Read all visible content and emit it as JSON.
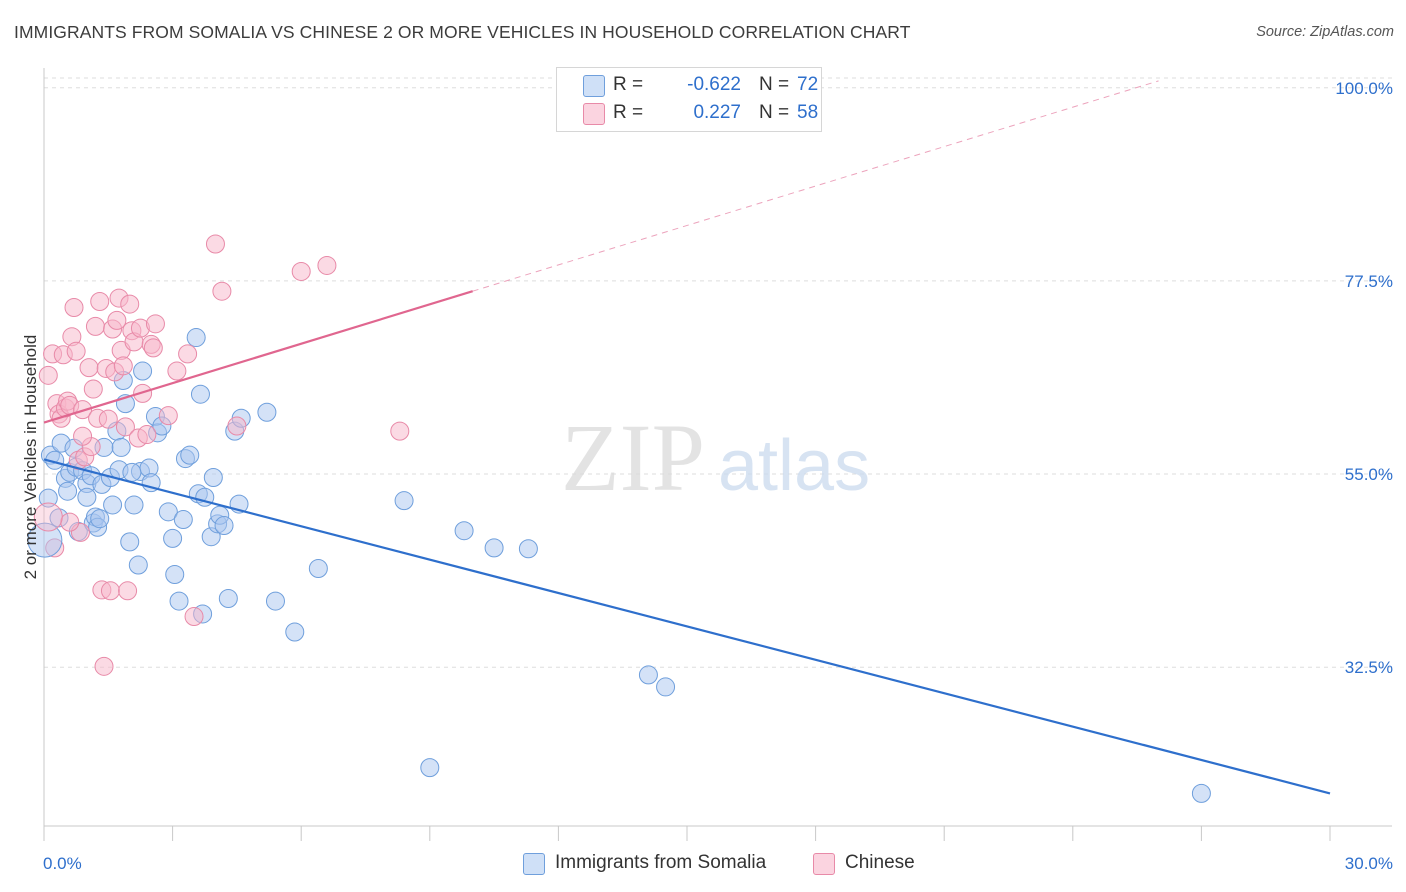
{
  "header": {
    "title": "IMMIGRANTS FROM SOMALIA VS CHINESE 2 OR MORE VEHICLES IN HOUSEHOLD CORRELATION CHART",
    "source": "Source: ZipAtlas.com"
  },
  "watermark": {
    "zip": "ZIP",
    "atlas": "atlas"
  },
  "legend": {
    "rows": [
      {
        "r_label": "R =",
        "r_value": "-0.622",
        "n_label": "N =",
        "n_value": "72",
        "color": "#a9c6f0"
      },
      {
        "r_label": "R =",
        "r_value": "0.227",
        "n_label": "N =",
        "n_value": "58",
        "color": "#f7b6ca"
      }
    ]
  },
  "colors": {
    "somalia_fill": "#a9c6f0",
    "somalia_stroke": "#6f9fdc",
    "somalia_line": "#2e6fcc",
    "chinese_fill": "#f7b6ca",
    "chinese_stroke": "#e88aa8",
    "chinese_line": "#e0668f",
    "axis_label": "#2e6fcc",
    "grid": "#dedede"
  },
  "chart_data": {
    "type": "scatter",
    "title": "IMMIGRANTS FROM SOMALIA VS CHINESE 2 OR MORE VEHICLES IN HOUSEHOLD CORRELATION CHART",
    "xlabel": "",
    "ylabel": "2 or more Vehicles in Household",
    "xlim": [
      0,
      30
    ],
    "ylim": [
      14,
      103
    ],
    "x_tick_labels": [
      "0.0%",
      "30.0%"
    ],
    "y_ticks": [
      32.5,
      55.0,
      77.5,
      100.0
    ],
    "y_tick_labels": [
      "32.5%",
      "55.0%",
      "77.5%",
      "100.0%"
    ],
    "grid": true,
    "legend_position": "bottom-center",
    "series": [
      {
        "name": "Immigrants from Somalia",
        "r": -0.622,
        "n": 72,
        "trend": {
          "x": [
            0,
            30
          ],
          "y": [
            56.7,
            17.8
          ],
          "style": "solid"
        },
        "points": [
          [
            0.1,
            52.2
          ],
          [
            0.15,
            57.2
          ],
          [
            0.25,
            56.6
          ],
          [
            0.35,
            49.9
          ],
          [
            0.4,
            58.6
          ],
          [
            0.5,
            54.5
          ],
          [
            0.6,
            55.2
          ],
          [
            0.7,
            58.0
          ],
          [
            0.75,
            55.8
          ],
          [
            0.8,
            48.3
          ],
          [
            0.9,
            55.4
          ],
          [
            1.0,
            53.9
          ],
          [
            1.0,
            52.3
          ],
          [
            1.1,
            54.8
          ],
          [
            1.15,
            49.3
          ],
          [
            1.2,
            50.0
          ],
          [
            1.25,
            48.8
          ],
          [
            1.35,
            53.8
          ],
          [
            1.4,
            58.1
          ],
          [
            1.55,
            54.6
          ],
          [
            1.6,
            51.4
          ],
          [
            1.7,
            60.0
          ],
          [
            1.75,
            55.5
          ],
          [
            1.8,
            58.1
          ],
          [
            1.85,
            65.9
          ],
          [
            1.9,
            63.2
          ],
          [
            2.0,
            47.1
          ],
          [
            2.1,
            51.4
          ],
          [
            2.2,
            44.4
          ],
          [
            2.25,
            55.3
          ],
          [
            2.3,
            67.0
          ],
          [
            2.45,
            55.7
          ],
          [
            2.5,
            54.0
          ],
          [
            2.6,
            61.7
          ],
          [
            2.65,
            59.8
          ],
          [
            2.75,
            60.6
          ],
          [
            2.9,
            50.6
          ],
          [
            3.0,
            47.5
          ],
          [
            3.05,
            43.3
          ],
          [
            3.15,
            40.2
          ],
          [
            3.25,
            49.7
          ],
          [
            3.3,
            56.8
          ],
          [
            3.4,
            57.2
          ],
          [
            3.55,
            70.9
          ],
          [
            3.6,
            52.7
          ],
          [
            3.65,
            64.3
          ],
          [
            3.75,
            52.3
          ],
          [
            3.9,
            47.7
          ],
          [
            3.95,
            54.6
          ],
          [
            4.05,
            49.2
          ],
          [
            4.1,
            50.2
          ],
          [
            4.2,
            49.0
          ],
          [
            4.3,
            40.5
          ],
          [
            4.45,
            60.0
          ],
          [
            4.55,
            51.5
          ],
          [
            4.6,
            61.5
          ],
          [
            5.2,
            62.2
          ],
          [
            5.4,
            40.2
          ],
          [
            5.85,
            36.6
          ],
          [
            6.4,
            44.0
          ],
          [
            8.4,
            51.9
          ],
          [
            9.8,
            48.4
          ],
          [
            10.5,
            46.4
          ],
          [
            11.3,
            46.3
          ],
          [
            14.1,
            31.6
          ],
          [
            14.5,
            30.2
          ],
          [
            9.0,
            20.8
          ],
          [
            27.0,
            17.8
          ],
          [
            3.7,
            38.7
          ],
          [
            0.55,
            53.0
          ],
          [
            1.3,
            49.8
          ],
          [
            2.05,
            55.2
          ]
        ]
      },
      {
        "name": "Chinese",
        "r": 0.227,
        "n": 58,
        "trend": {
          "x": [
            0,
            10
          ],
          "y": [
            61.0,
            76.3
          ],
          "style": "solid"
        },
        "trend_extension": {
          "x": [
            10,
            26
          ],
          "y": [
            76.3,
            100.8
          ],
          "style": "dashed"
        },
        "points": [
          [
            0.1,
            66.5
          ],
          [
            0.2,
            69.0
          ],
          [
            0.3,
            63.2
          ],
          [
            0.35,
            62.0
          ],
          [
            0.4,
            61.5
          ],
          [
            0.45,
            68.9
          ],
          [
            0.5,
            62.7
          ],
          [
            0.55,
            63.5
          ],
          [
            0.6,
            63.0
          ],
          [
            0.65,
            71.0
          ],
          [
            0.7,
            74.4
          ],
          [
            0.75,
            69.3
          ],
          [
            0.8,
            56.6
          ],
          [
            0.85,
            48.2
          ],
          [
            0.9,
            62.5
          ],
          [
            0.95,
            57.0
          ],
          [
            1.05,
            67.4
          ],
          [
            1.1,
            58.2
          ],
          [
            1.15,
            64.9
          ],
          [
            1.2,
            72.2
          ],
          [
            1.25,
            61.5
          ],
          [
            1.3,
            75.1
          ],
          [
            1.35,
            41.5
          ],
          [
            1.4,
            32.6
          ],
          [
            1.45,
            67.3
          ],
          [
            1.5,
            61.4
          ],
          [
            1.55,
            41.4
          ],
          [
            1.6,
            71.9
          ],
          [
            1.65,
            66.9
          ],
          [
            1.7,
            72.9
          ],
          [
            1.75,
            75.5
          ],
          [
            1.8,
            69.4
          ],
          [
            1.85,
            67.6
          ],
          [
            1.9,
            60.5
          ],
          [
            1.95,
            41.4
          ],
          [
            2.0,
            74.8
          ],
          [
            2.05,
            71.7
          ],
          [
            2.1,
            70.4
          ],
          [
            2.2,
            59.2
          ],
          [
            2.25,
            72.0
          ],
          [
            2.3,
            64.4
          ],
          [
            2.4,
            59.6
          ],
          [
            2.5,
            70.1
          ],
          [
            2.55,
            69.7
          ],
          [
            2.6,
            72.5
          ],
          [
            2.9,
            61.8
          ],
          [
            3.1,
            67.0
          ],
          [
            3.35,
            69.0
          ],
          [
            3.5,
            38.4
          ],
          [
            4.0,
            81.8
          ],
          [
            4.15,
            76.3
          ],
          [
            4.5,
            60.6
          ],
          [
            6.0,
            78.6
          ],
          [
            6.6,
            79.3
          ],
          [
            8.3,
            60.0
          ],
          [
            0.25,
            46.4
          ],
          [
            0.6,
            49.4
          ],
          [
            0.9,
            59.4
          ]
        ]
      }
    ]
  }
}
